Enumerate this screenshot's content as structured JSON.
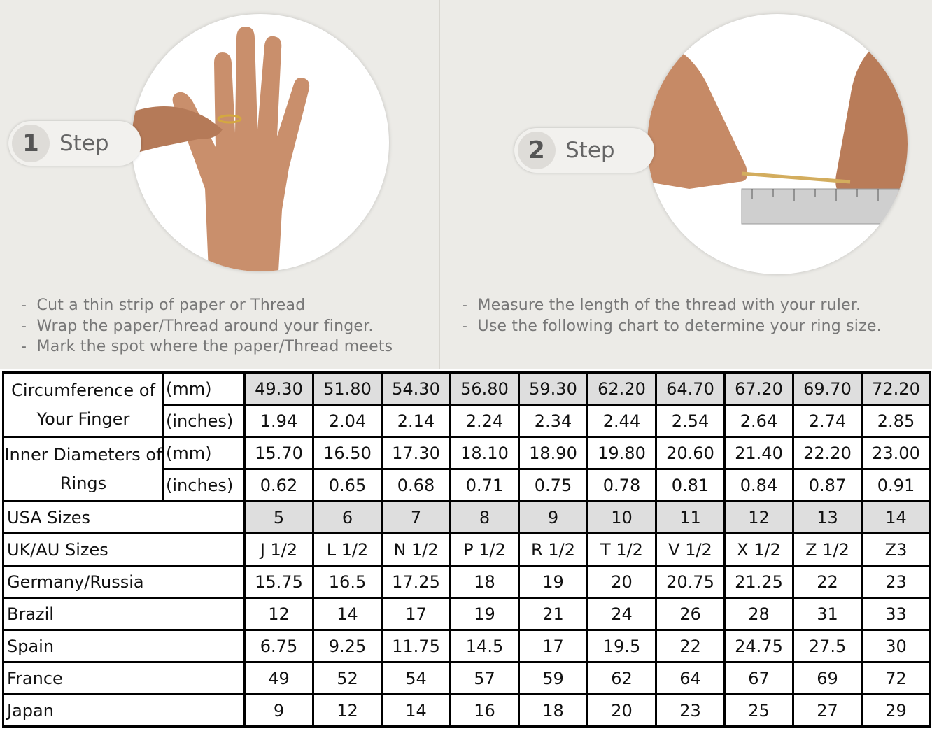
{
  "steps": [
    {
      "number": "1",
      "label": "Step",
      "bullets": [
        "Cut a thin strip of paper or Thread",
        "Wrap the paper/Thread around your finger.",
        "Mark the spot where the paper/Thread meets"
      ]
    },
    {
      "number": "2",
      "label": "Step",
      "bullets": [
        "Measure the length of the thread with your ruler.",
        "Use the following chart to determine your ring size."
      ]
    }
  ],
  "colors": {
    "background": "#ecebe7",
    "shaded_cell": "#dedede",
    "border": "#000000"
  },
  "table": {
    "circumference": {
      "label": "Circumference of Your Finger",
      "mm_unit": "(mm)",
      "inch_unit": "(inches)",
      "mm": [
        "49.30",
        "51.80",
        "54.30",
        "56.80",
        "59.30",
        "62.20",
        "64.70",
        "67.20",
        "69.70",
        "72.20"
      ],
      "inches": [
        "1.94",
        "2.04",
        "2.14",
        "2.24",
        "2.34",
        "2.44",
        "2.54",
        "2.64",
        "2.74",
        "2.85"
      ]
    },
    "inner_diameter": {
      "label": "Inner Diameters of Rings",
      "mm_unit": "(mm)",
      "inch_unit": "(inches)",
      "mm": [
        "15.70",
        "16.50",
        "17.30",
        "18.10",
        "18.90",
        "19.80",
        "20.60",
        "21.40",
        "22.20",
        "23.00"
      ],
      "inches": [
        "0.62",
        "0.65",
        "0.68",
        "0.71",
        "0.75",
        "0.78",
        "0.81",
        "0.84",
        "0.87",
        "0.91"
      ]
    },
    "rows": [
      {
        "label": "USA Sizes",
        "shaded": true,
        "values": [
          "5",
          "6",
          "7",
          "8",
          "9",
          "10",
          "11",
          "12",
          "13",
          "14"
        ]
      },
      {
        "label": "UK/AU Sizes",
        "values": [
          "J 1/2",
          "L 1/2",
          "N 1/2",
          "P 1/2",
          "R 1/2",
          "T 1/2",
          "V 1/2",
          "X 1/2",
          "Z 1/2",
          "Z3"
        ]
      },
      {
        "label": "Germany/Russia",
        "values": [
          "15.75",
          "16.5",
          "17.25",
          "18",
          "19",
          "20",
          "20.75",
          "21.25",
          "22",
          "23"
        ]
      },
      {
        "label": "Brazil",
        "values": [
          "12",
          "14",
          "17",
          "19",
          "21",
          "24",
          "26",
          "28",
          "31",
          "33"
        ]
      },
      {
        "label": "Spain",
        "values": [
          "6.75",
          "9.25",
          "11.75",
          "14.5",
          "17",
          "19.5",
          "22",
          "24.75",
          "27.5",
          "30"
        ]
      },
      {
        "label": "France",
        "values": [
          "49",
          "52",
          "54",
          "57",
          "59",
          "62",
          "64",
          "67",
          "69",
          "72"
        ]
      },
      {
        "label": "Japan",
        "values": [
          "9",
          "12",
          "14",
          "16",
          "18",
          "20",
          "23",
          "25",
          "27",
          "29"
        ]
      }
    ]
  }
}
